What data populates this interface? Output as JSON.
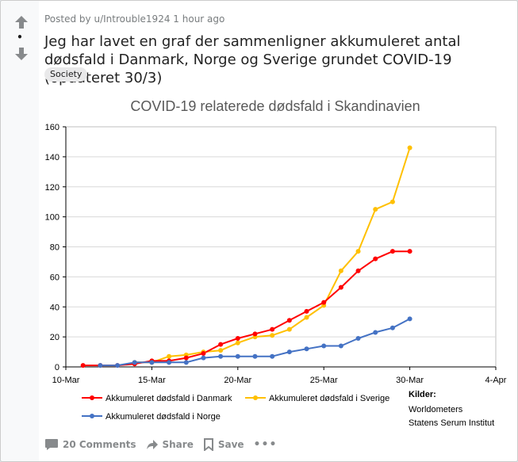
{
  "post": {
    "posted_by_prefix": "Posted by ",
    "username": "u/Introuble1924",
    "time_ago": "1 hour ago",
    "vote_score": "•",
    "title": "Jeg har lavet en graf der sammenligner akkumuleret antal dødsfald i Danmark, Norge og Sverige grundet COVID-19 (opdateret 30/3)",
    "flair": "Society"
  },
  "actions": {
    "comments": "20 Comments",
    "share": "Share",
    "save": "Save",
    "more": "•••"
  },
  "icons": {
    "upvote": "arrow-up-icon",
    "downvote": "arrow-down-icon",
    "comments": "comment-bubble-icon",
    "share": "share-arrow-icon",
    "save": "bookmark-icon"
  },
  "chart_data": {
    "type": "line",
    "title": "COVID-19 relaterede dødsfald i Skandinavien",
    "xlabel": "",
    "ylabel": "",
    "ylim": [
      0,
      160
    ],
    "y_ticks": [
      "0",
      "20",
      "40",
      "60",
      "80",
      "100",
      "120",
      "140",
      "160"
    ],
    "xlim": [
      0,
      25
    ],
    "x_ticks": [
      {
        "x": 0,
        "label": "10-Mar"
      },
      {
        "x": 5,
        "label": "15-Mar"
      },
      {
        "x": 10,
        "label": "20-Mar"
      },
      {
        "x": 15,
        "label": "25-Mar"
      },
      {
        "x": 20,
        "label": "30-Mar"
      },
      {
        "x": 25,
        "label": "4-Apr"
      }
    ],
    "series": [
      {
        "name": "Akkumuleret dødsfald i Danmark",
        "color": "#ff0000",
        "x": [
          1,
          2,
          3,
          4,
          5,
          6,
          7,
          8,
          9,
          10,
          11,
          12,
          13,
          14,
          15,
          16,
          17,
          18,
          19,
          20
        ],
        "values": [
          1,
          1,
          1,
          2,
          4,
          4,
          6,
          9,
          15,
          19,
          22,
          25,
          31,
          37,
          43,
          53,
          64,
          72,
          77,
          77
        ]
      },
      {
        "name": "Akkumuleret dødsfald i Sverige",
        "color": "#ffc000",
        "x": [
          4,
          5,
          6,
          7,
          8,
          9,
          10,
          11,
          12,
          13,
          14,
          15,
          16,
          17,
          18,
          19,
          20
        ],
        "values": [
          3,
          3,
          7,
          8,
          10,
          11,
          16,
          20,
          21,
          25,
          33,
          41,
          64,
          77,
          105,
          110,
          146
        ]
      },
      {
        "name": "Akkumuleret dødsfald i Norge",
        "color": "#4472c4",
        "x": [
          2,
          3,
          4,
          5,
          6,
          7,
          8,
          9,
          10,
          11,
          12,
          13,
          14,
          15,
          16,
          17,
          18,
          19,
          20
        ],
        "values": [
          1,
          1,
          3,
          3,
          3,
          3,
          6,
          7,
          7,
          7,
          7,
          10,
          12,
          14,
          14,
          19,
          23,
          26,
          32
        ]
      }
    ],
    "source_title": "Kilder:",
    "source_lines": [
      "Worldometers",
      "Statens Serum Institut"
    ]
  }
}
